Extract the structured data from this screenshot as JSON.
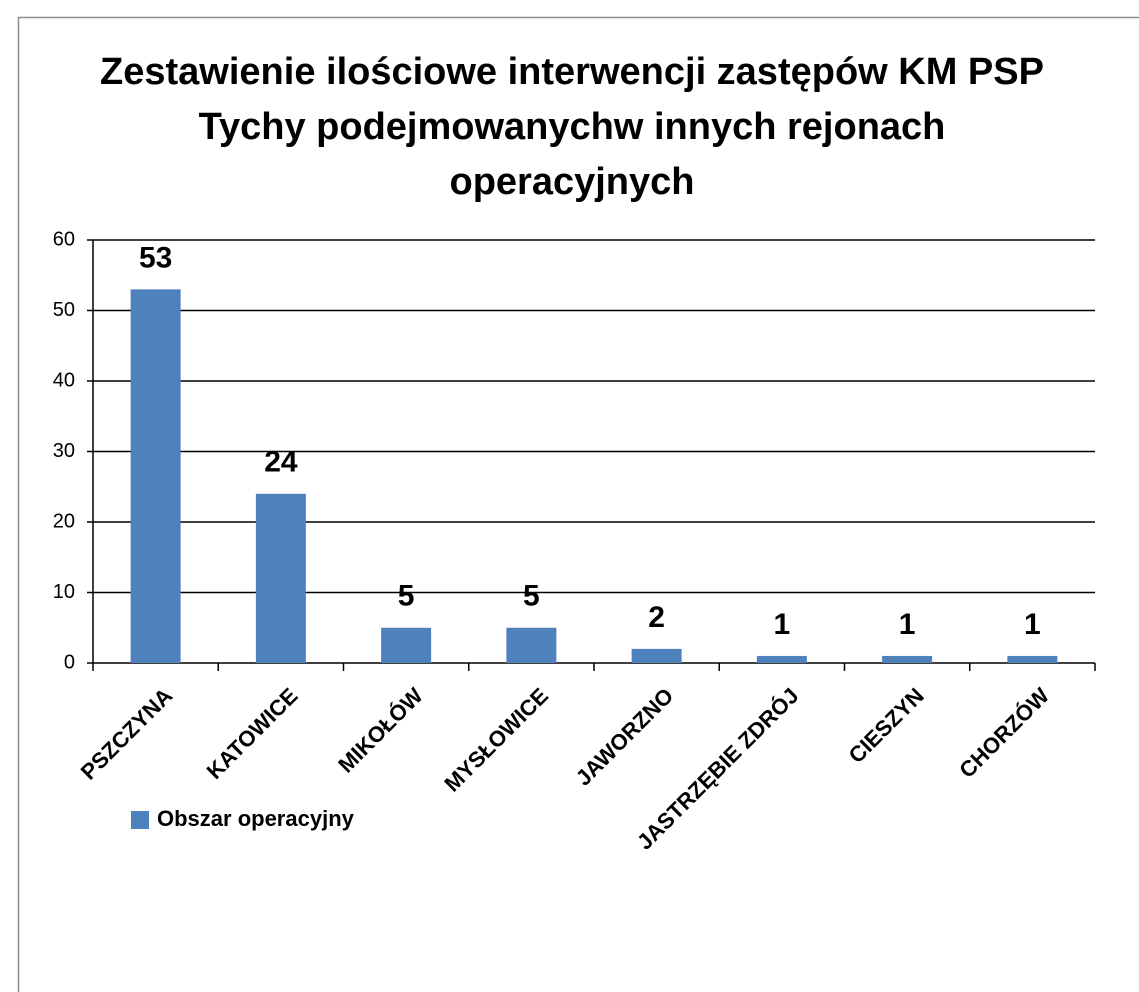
{
  "chart_data": {
    "type": "bar",
    "title": [
      "Zestawienie ilościowe interwencji zastępów KM PSP",
      "Tychy podejmowanychw innych rejonach",
      "operacyjnych"
    ],
    "categories": [
      "PSZCZYNA",
      "KATOWICE",
      "MIKOŁÓW",
      "MYSŁOWICE",
      "JAWORZNO",
      "JASTRZĘBIE ZDRÓJ",
      "CIESZYN",
      "CHORZÓW"
    ],
    "series": [
      {
        "name": "Obszar operacyjny",
        "color": "#4f81bd",
        "values": [
          53,
          24,
          5,
          5,
          2,
          1,
          1,
          1
        ]
      }
    ],
    "ylim": [
      0,
      60
    ],
    "yticks": [
      0,
      10,
      20,
      30,
      40,
      50,
      60
    ],
    "grid": true,
    "legend": "bottom-left"
  }
}
